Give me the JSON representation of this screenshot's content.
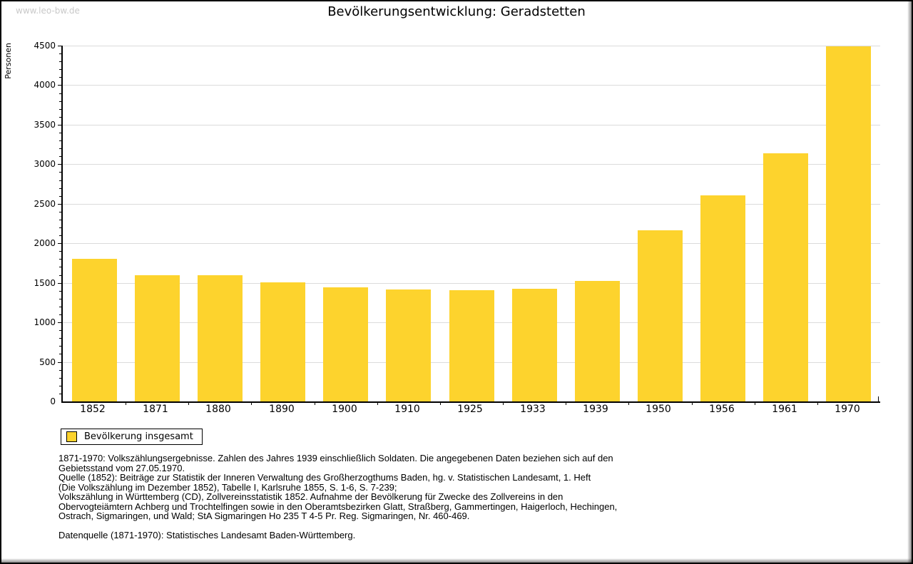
{
  "page": {
    "watermark": "www.leo-bw.de",
    "title": "Bevölkerungsentwicklung: Geradstetten"
  },
  "chart_data": {
    "type": "bar",
    "title": "Bevölkerungsentwicklung: Geradstetten",
    "ylabel": "Personen",
    "xlabel": "",
    "categories": [
      "1852",
      "1871",
      "1880",
      "1890",
      "1900",
      "1910",
      "1925",
      "1933",
      "1939",
      "1950",
      "1956",
      "1961",
      "1970"
    ],
    "values": [
      1800,
      1600,
      1595,
      1510,
      1440,
      1420,
      1405,
      1425,
      1525,
      2160,
      2610,
      3140,
      4490
    ],
    "ylim": [
      0,
      4500
    ],
    "ytick_step": 500,
    "yminor_step": 100,
    "grid": true,
    "legend_position": "bottom-left",
    "bar_color": "#FDD32D",
    "grid_color": "#DBDBDB",
    "axis_color": "#000000"
  },
  "legend": {
    "label": "Bevölkerung insgesamt",
    "swatch_color": "#FDD32D"
  },
  "footer": {
    "lines": [
      "1871-1970: Volkszählungsergebnisse. Zahlen des Jahres 1939 einschließlich Soldaten. Die angegebenen Daten beziehen sich auf den",
      "Gebietsstand vom 27.05.1970.",
      "Quelle (1852): Beiträge zur Statistik der Inneren Verwaltung des Großherzogthums Baden, hg. v. Statistischen Landesamt, 1. Heft",
      "(Die Volkszählung im Dezember 1852), Tabelle I, Karlsruhe 1855, S. 1-6, S. 7-239;",
      "Volkszählung in Württemberg (CD), Zollvereinsstatistik 1852. Aufnahme der Bevölkerung für Zwecke des Zollvereins in den",
      "Obervogteiämtern Achberg und Trochtelfingen sowie in den Oberamtsbezirken Glatt, Straßberg, Gammertingen, Haigerloch, Hechingen,",
      "Ostrach, Sigmaringen, und Wald; StA Sigmaringen Ho 235 T 4-5 Pr. Reg. Sigmaringen, Nr. 460-469."
    ],
    "datasource": "Datenquelle (1871-1970): Statistisches Landesamt Baden-Württemberg."
  }
}
